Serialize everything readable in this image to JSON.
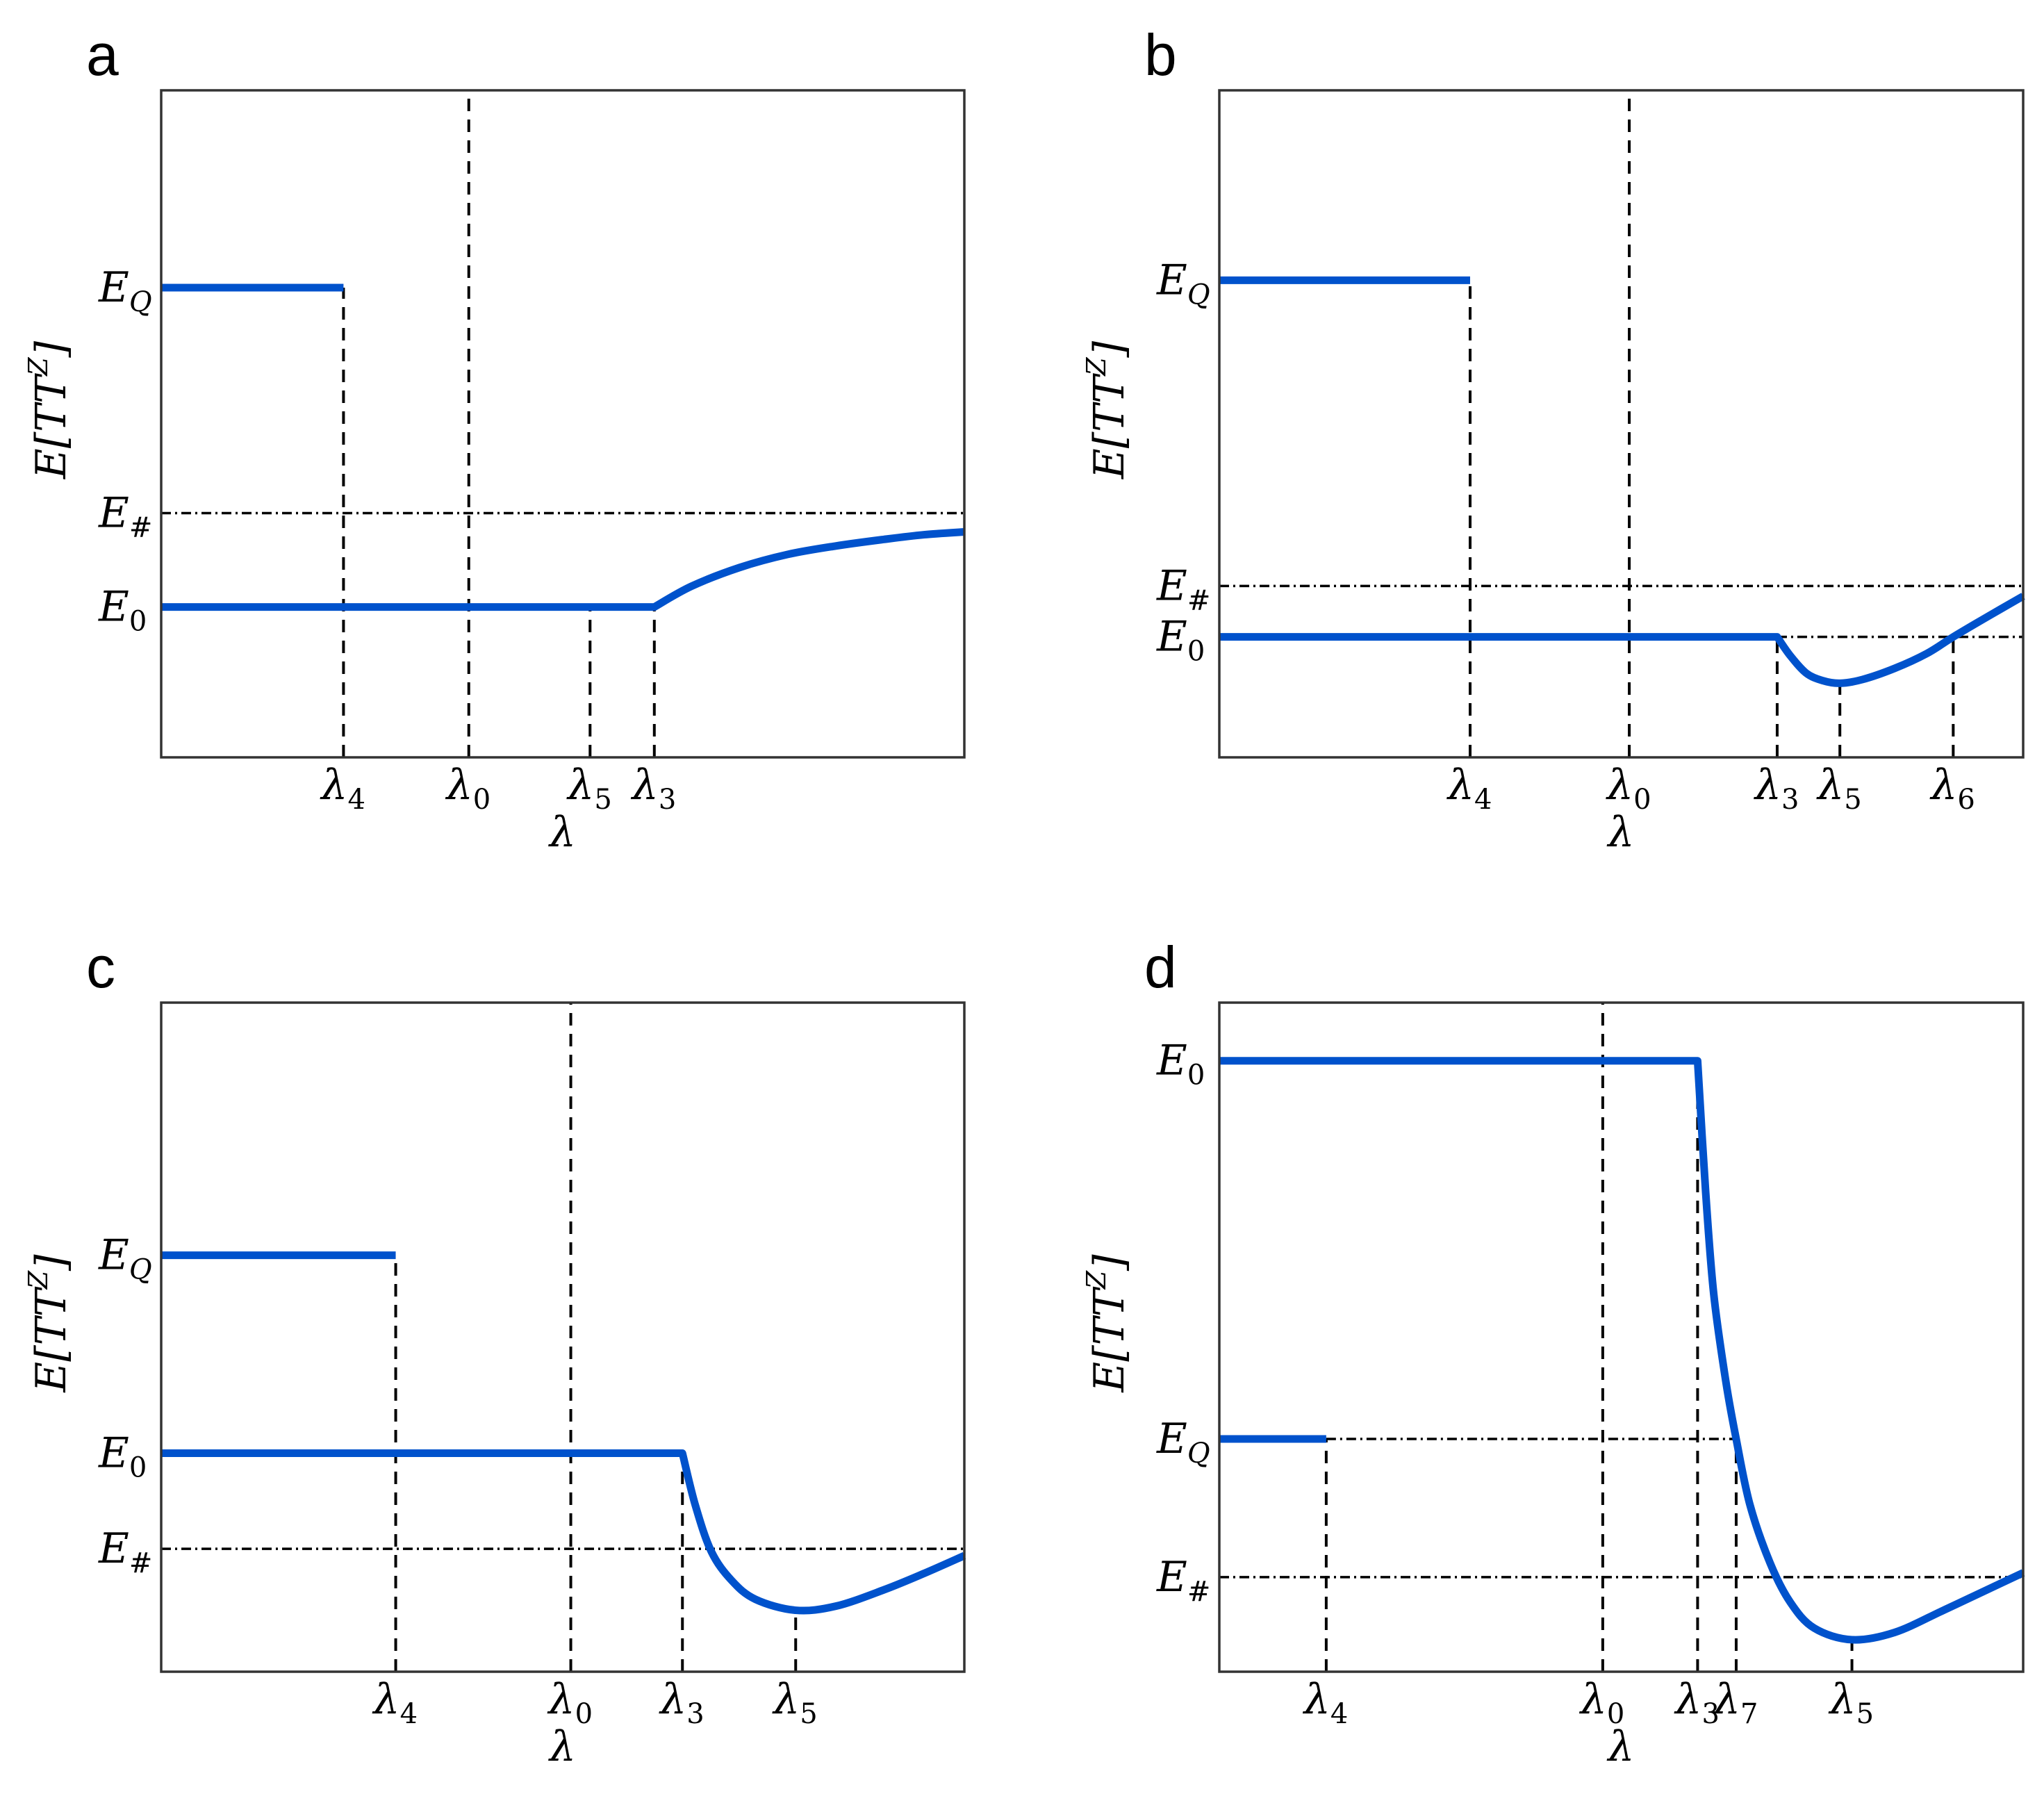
{
  "chart_data": [
    {
      "panel": "a",
      "type": "line",
      "xlabel": "λ",
      "ylabel": "E[TT^Z]",
      "xlim": [
        0,
        10
      ],
      "ylim": [
        -1.6,
        5.5
      ],
      "yticks": [
        {
          "label": "E_Q",
          "base": "E",
          "sub": "Q",
          "y": 3.4
        },
        {
          "label": "E_#",
          "base": "E",
          "sub": "#",
          "y": 1.0
        },
        {
          "label": "E_0",
          "base": "E",
          "sub": "0",
          "y": 0.0
        }
      ],
      "xticks": [
        {
          "label": "λ_4",
          "sub": "4",
          "x": 2.27
        },
        {
          "label": "λ_0",
          "sub": "0",
          "x": 3.83
        },
        {
          "label": "λ_5",
          "sub": "5",
          "x": 5.34
        },
        {
          "label": "λ_3",
          "sub": "3",
          "x": 6.14
        }
      ],
      "series": [
        {
          "name": "E_Q branch",
          "points": [
            [
              0,
              3.4
            ],
            [
              2.27,
              3.4
            ]
          ]
        },
        {
          "name": "E_0 branch",
          "points": [
            [
              0,
              0
            ],
            [
              6.14,
              0
            ],
            [
              6.6,
              0.22
            ],
            [
              7.2,
              0.42
            ],
            [
              7.8,
              0.56
            ],
            [
              8.4,
              0.65
            ],
            [
              9.0,
              0.72
            ],
            [
              9.5,
              0.77
            ],
            [
              10,
              0.8
            ]
          ]
        }
      ],
      "vlines": [
        {
          "x": 2.27,
          "from": "bottom",
          "to": 3.4
        },
        {
          "x": 3.83,
          "from": "bottom",
          "to": "top"
        },
        {
          "x": 5.34,
          "from": "bottom",
          "to": 0
        },
        {
          "x": 6.14,
          "from": "bottom",
          "to": 0
        }
      ],
      "hlines": [
        {
          "y": 1.0,
          "from": 0,
          "to": 10
        }
      ]
    },
    {
      "panel": "b",
      "type": "line",
      "xlabel": "λ",
      "ylabel": "E[TT^Z]",
      "xlim": [
        0,
        10
      ],
      "ylim": [
        -1.3,
        5.9
      ],
      "yticks": [
        {
          "label": "E_Q",
          "base": "E",
          "sub": "Q",
          "y": 3.85
        },
        {
          "label": "E_#",
          "base": "E",
          "sub": "#",
          "y": 0.55
        },
        {
          "label": "E_0",
          "base": "E",
          "sub": "0",
          "y": 0.0
        }
      ],
      "xticks": [
        {
          "label": "λ_4",
          "sub": "4",
          "x": 3.12
        },
        {
          "label": "λ_0",
          "sub": "0",
          "x": 5.1
        },
        {
          "label": "λ_3",
          "sub": "3",
          "x": 6.94
        },
        {
          "label": "λ_5",
          "sub": "5",
          "x": 7.72
        },
        {
          "label": "λ_6",
          "sub": "6",
          "x": 9.13
        }
      ],
      "series": [
        {
          "name": "E_Q branch",
          "points": [
            [
              0,
              3.85
            ],
            [
              3.12,
              3.85
            ]
          ]
        },
        {
          "name": "E_0 branch",
          "points": [
            [
              0,
              0
            ],
            [
              6.94,
              0
            ],
            [
              7.1,
              -0.2
            ],
            [
              7.3,
              -0.39
            ],
            [
              7.5,
              -0.47
            ],
            [
              7.72,
              -0.5
            ],
            [
              8.0,
              -0.46
            ],
            [
              8.4,
              -0.34
            ],
            [
              8.8,
              -0.18
            ],
            [
              9.13,
              0
            ],
            [
              9.5,
              0.19
            ],
            [
              10,
              0.44
            ]
          ]
        }
      ],
      "vlines": [
        {
          "x": 3.12,
          "from": "bottom",
          "to": 3.85
        },
        {
          "x": 5.1,
          "from": "bottom",
          "to": "top"
        },
        {
          "x": 6.94,
          "from": "bottom",
          "to": 0
        },
        {
          "x": 7.72,
          "from": "bottom",
          "to": -0.5
        },
        {
          "x": 9.13,
          "from": "bottom",
          "to": 0
        }
      ],
      "hlines": [
        {
          "y": 0.55,
          "from": 0,
          "to": 10
        },
        {
          "y": 0.0,
          "from": 6.94,
          "to": 10
        }
      ]
    },
    {
      "panel": "c",
      "type": "line",
      "xlabel": "λ",
      "ylabel": "E[TT^Z]",
      "xlim": [
        0,
        10
      ],
      "ylim": [
        -1.6,
        3.3
      ],
      "yticks": [
        {
          "label": "E_Q",
          "base": "E",
          "sub": "Q",
          "y": 1.45
        },
        {
          "label": "E_0",
          "base": "E",
          "sub": "0",
          "y": 0.0
        },
        {
          "label": "E_#",
          "base": "E",
          "sub": "#",
          "y": -0.7
        }
      ],
      "xticks": [
        {
          "label": "λ_4",
          "sub": "4",
          "x": 2.92
        },
        {
          "label": "λ_0",
          "sub": "0",
          "x": 5.1
        },
        {
          "label": "λ_3",
          "sub": "3",
          "x": 6.49
        },
        {
          "label": "λ_5",
          "sub": "5",
          "x": 7.9
        }
      ],
      "series": [
        {
          "name": "E_Q branch",
          "points": [
            [
              0,
              1.45
            ],
            [
              2.92,
              1.45
            ]
          ]
        },
        {
          "name": "E_0 branch",
          "points": [
            [
              0,
              0
            ],
            [
              6.49,
              0
            ],
            [
              6.65,
              -0.38
            ],
            [
              6.85,
              -0.72
            ],
            [
              7.1,
              -0.93
            ],
            [
              7.4,
              -1.07
            ],
            [
              7.9,
              -1.15
            ],
            [
              8.4,
              -1.12
            ],
            [
              9.0,
              -1.0
            ],
            [
              9.5,
              -0.88
            ],
            [
              10,
              -0.75
            ]
          ]
        }
      ],
      "vlines": [
        {
          "x": 2.92,
          "from": "bottom",
          "to": 1.45
        },
        {
          "x": 5.1,
          "from": "bottom",
          "to": "top"
        },
        {
          "x": 6.49,
          "from": "bottom",
          "to": 0
        },
        {
          "x": 7.9,
          "from": "bottom",
          "to": -1.15
        }
      ],
      "hlines": [
        {
          "y": -0.7,
          "from": 0,
          "to": 10
        }
      ]
    },
    {
      "panel": "d",
      "type": "line",
      "xlabel": "λ",
      "ylabel": "E[TT^Z]",
      "xlim": [
        0,
        10
      ],
      "ylim": [
        -3.6,
        1.0
      ],
      "yticks": [
        {
          "label": "E_0",
          "base": "E",
          "sub": "0",
          "y": 0.6
        },
        {
          "label": "E_Q",
          "base": "E",
          "sub": "Q",
          "y": -2.0
        },
        {
          "label": "E_#",
          "base": "E",
          "sub": "#",
          "y": -2.95
        }
      ],
      "xticks": [
        {
          "label": "λ_4",
          "sub": "4",
          "x": 1.33
        },
        {
          "label": "λ_0",
          "sub": "0",
          "x": 4.77
        },
        {
          "label": "λ_3",
          "sub": "3",
          "x": 5.95
        },
        {
          "label": "λ_7",
          "sub": "7",
          "x": 6.43
        },
        {
          "label": "λ_5",
          "sub": "5",
          "x": 7.87
        }
      ],
      "series": [
        {
          "name": "E_Q branch",
          "points": [
            [
              0,
              -2.0
            ],
            [
              1.33,
              -2.0
            ]
          ]
        },
        {
          "name": "E_0 branch",
          "points": [
            [
              0,
              0.6
            ],
            [
              5.95,
              0.6
            ],
            [
              6.05,
              -0.3
            ],
            [
              6.15,
              -1.0
            ],
            [
              6.3,
              -1.6
            ],
            [
              6.43,
              -2.0
            ],
            [
              6.6,
              -2.45
            ],
            [
              6.85,
              -2.85
            ],
            [
              7.1,
              -3.12
            ],
            [
              7.4,
              -3.3
            ],
            [
              7.87,
              -3.38
            ],
            [
              8.4,
              -3.33
            ],
            [
              9.0,
              -3.18
            ],
            [
              9.5,
              -3.05
            ],
            [
              10,
              -2.92
            ]
          ]
        }
      ],
      "vlines": [
        {
          "x": 1.33,
          "from": "bottom",
          "to": -2.0
        },
        {
          "x": 4.77,
          "from": "bottom",
          "to": "top"
        },
        {
          "x": 5.95,
          "from": "bottom",
          "to": 0.6
        },
        {
          "x": 6.43,
          "from": "bottom",
          "to": -2.0
        },
        {
          "x": 7.87,
          "from": "bottom",
          "to": -3.38
        }
      ],
      "hlines": [
        {
          "y": -2.0,
          "from": 1.33,
          "to": 6.43
        },
        {
          "y": -2.95,
          "from": 0,
          "to": 10
        }
      ]
    }
  ]
}
